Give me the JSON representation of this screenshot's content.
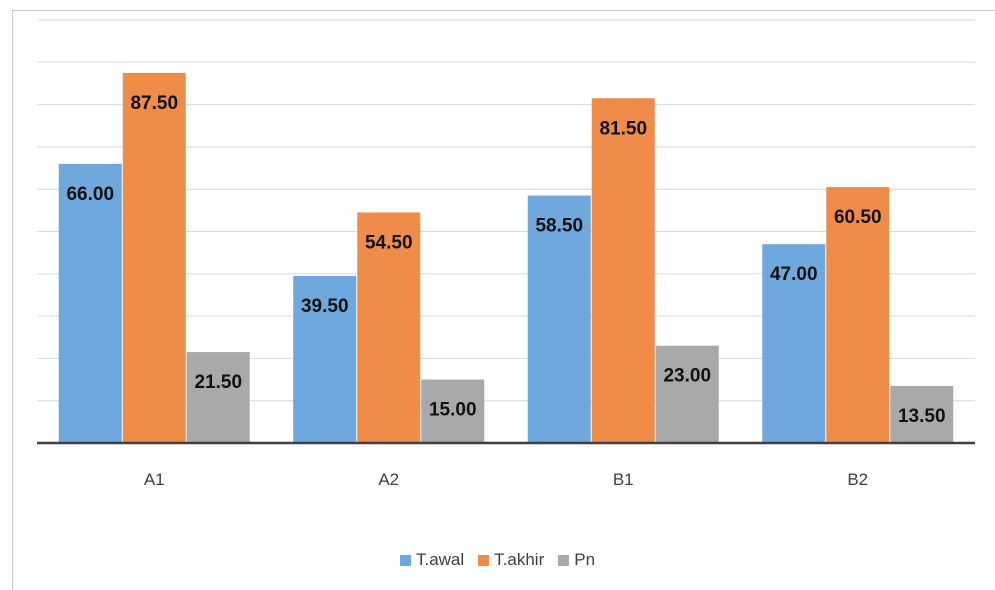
{
  "chart_data": {
    "type": "bar",
    "categories": [
      "A1",
      "A2",
      "B1",
      "B2"
    ],
    "series": [
      {
        "name": "T.awal",
        "values": [
          66.0,
          39.5,
          58.5,
          47.0
        ],
        "labels": [
          "66.00",
          "39.50",
          "58.50",
          "47.00"
        ],
        "color": "#6fa8dc"
      },
      {
        "name": "T.akhir",
        "values": [
          87.5,
          54.5,
          81.5,
          60.5
        ],
        "labels": [
          "87.50",
          "54.50",
          "81.50",
          "60.50"
        ],
        "color": "#ef8c4a"
      },
      {
        "name": "Pn",
        "values": [
          21.5,
          15.0,
          23.0,
          13.5
        ],
        "labels": [
          "21.50",
          "15.00",
          "23.00",
          "13.50"
        ],
        "color": "#a9a9a9"
      }
    ],
    "ylim": [
      0,
      100
    ],
    "y_gridline_step": 10,
    "grid": true,
    "y_tick_labels_visible": false,
    "legend_position": "bottom"
  }
}
